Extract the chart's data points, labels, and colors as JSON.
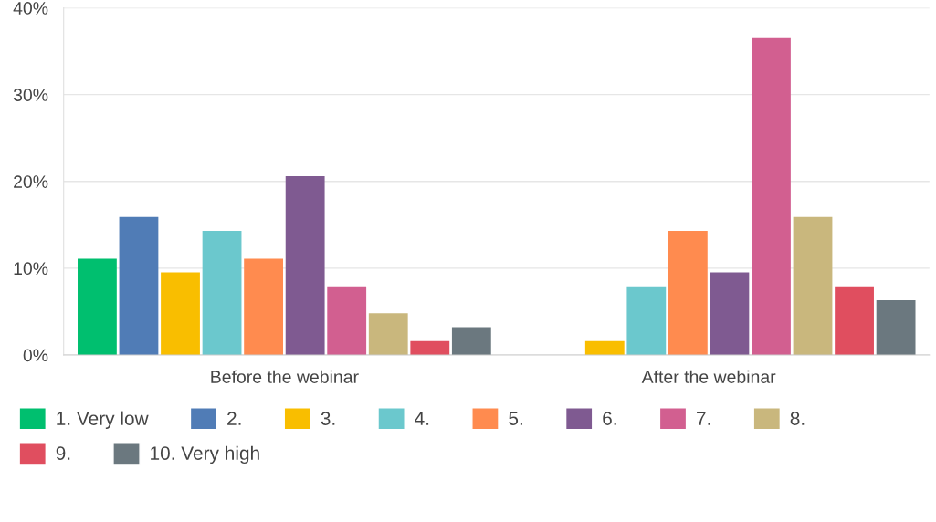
{
  "chart_data": {
    "type": "bar",
    "categories": [
      "Before the webinar",
      "After the webinar"
    ],
    "series": [
      {
        "name": "1. Very low",
        "color": "#00bf6f",
        "values": [
          11.1,
          0
        ]
      },
      {
        "name": "2.",
        "color": "#507cb6",
        "values": [
          15.9,
          0
        ]
      },
      {
        "name": "3.",
        "color": "#f9be00",
        "values": [
          9.5,
          1.6
        ]
      },
      {
        "name": "4.",
        "color": "#6bc8cd",
        "values": [
          14.3,
          7.9
        ]
      },
      {
        "name": "5.",
        "color": "#ff8b4f",
        "values": [
          11.1,
          14.3
        ]
      },
      {
        "name": "6.",
        "color": "#7f5a91",
        "values": [
          20.6,
          9.5
        ]
      },
      {
        "name": "7.",
        "color": "#d25f90",
        "values": [
          7.9,
          36.5
        ]
      },
      {
        "name": "8.",
        "color": "#c9b77d",
        "values": [
          4.8,
          15.9
        ]
      },
      {
        "name": "9.",
        "color": "#e04e5f",
        "values": [
          1.6,
          7.9
        ]
      },
      {
        "name": "10. Very high",
        "color": "#6b787f",
        "values": [
          3.2,
          6.3
        ]
      }
    ],
    "ylim": [
      0,
      40
    ],
    "yticks": [
      {
        "value": 0,
        "label": "0%"
      },
      {
        "value": 10,
        "label": "10%"
      },
      {
        "value": 20,
        "label": "20%"
      },
      {
        "value": 30,
        "label": "30%"
      },
      {
        "value": 40,
        "label": "40%"
      }
    ],
    "grid": "y",
    "legend": "bottom"
  }
}
